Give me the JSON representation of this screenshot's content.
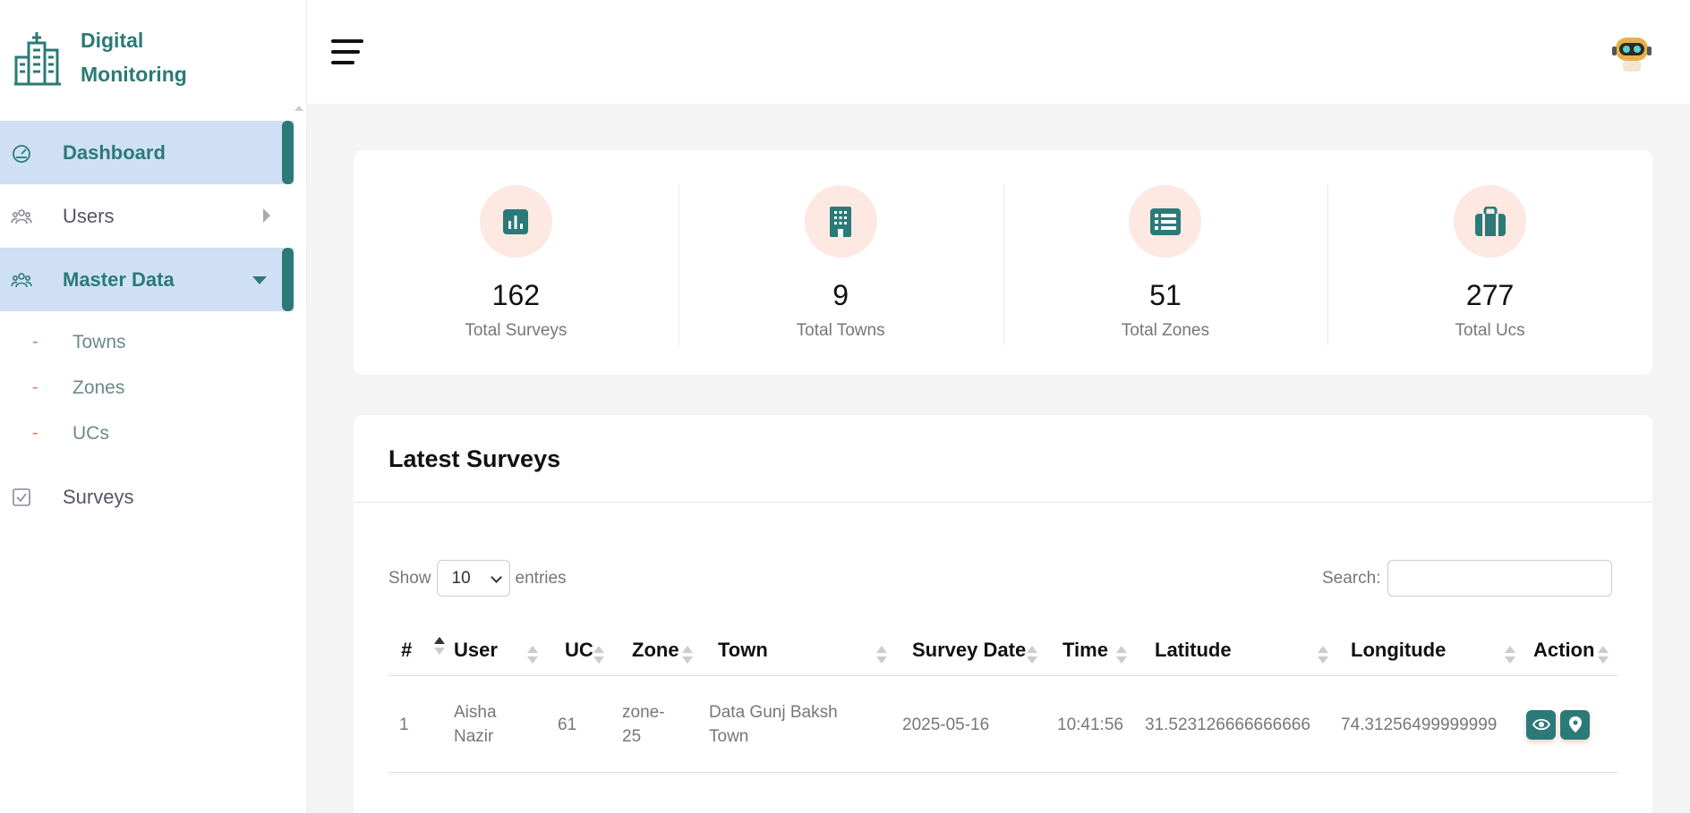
{
  "brand": {
    "line1": "Digital",
    "line2": "Monitoring"
  },
  "sidebar": {
    "items": [
      {
        "label": "Dashboard",
        "icon": "speedometer-icon",
        "active": true
      },
      {
        "label": "Users",
        "icon": "users-icon",
        "active": false
      },
      {
        "label": "Master Data",
        "icon": "users-icon",
        "active": true
      }
    ],
    "sub_items": [
      {
        "label": "Towns"
      },
      {
        "label": "Zones"
      },
      {
        "label": "UCs"
      }
    ],
    "surveys": {
      "label": "Surveys",
      "icon": "checkbox-icon"
    },
    "dash": "-"
  },
  "stats": [
    {
      "value": "162",
      "label": "Total Surveys",
      "icon": "bar-chart-icon"
    },
    {
      "value": "9",
      "label": "Total Towns",
      "icon": "building-icon"
    },
    {
      "value": "51",
      "label": "Total Zones",
      "icon": "list-icon"
    },
    {
      "value": "277",
      "label": "Total Ucs",
      "icon": "briefcase-icon"
    }
  ],
  "latest": {
    "title": "Latest Surveys",
    "show_label": "Show",
    "entries_value": "10",
    "entries_label": "entries",
    "search_label": "Search:",
    "search_value": "",
    "columns": [
      "#",
      "User",
      "UC",
      "Zone",
      "Town",
      "Survey Date",
      "Time",
      "Latitude",
      "Longitude",
      "Action"
    ],
    "rows": [
      {
        "num": "1",
        "user_line1": "Aisha",
        "user_line2": "Nazir",
        "uc": "61",
        "zone_line1": "zone-",
        "zone_line2": "25",
        "town_line1": "Data Gunj Baksh",
        "town_line2": "Town",
        "date": "2025-05-16",
        "time": "10:41:56",
        "latitude": "31.523126666666666",
        "longitude": "74.31256499999999"
      }
    ]
  },
  "colors": {
    "accent": "#2b7a78",
    "active_bg": "#cfe0f6",
    "icon_circle": "#fde8e2",
    "dash": "#e07a5f"
  }
}
